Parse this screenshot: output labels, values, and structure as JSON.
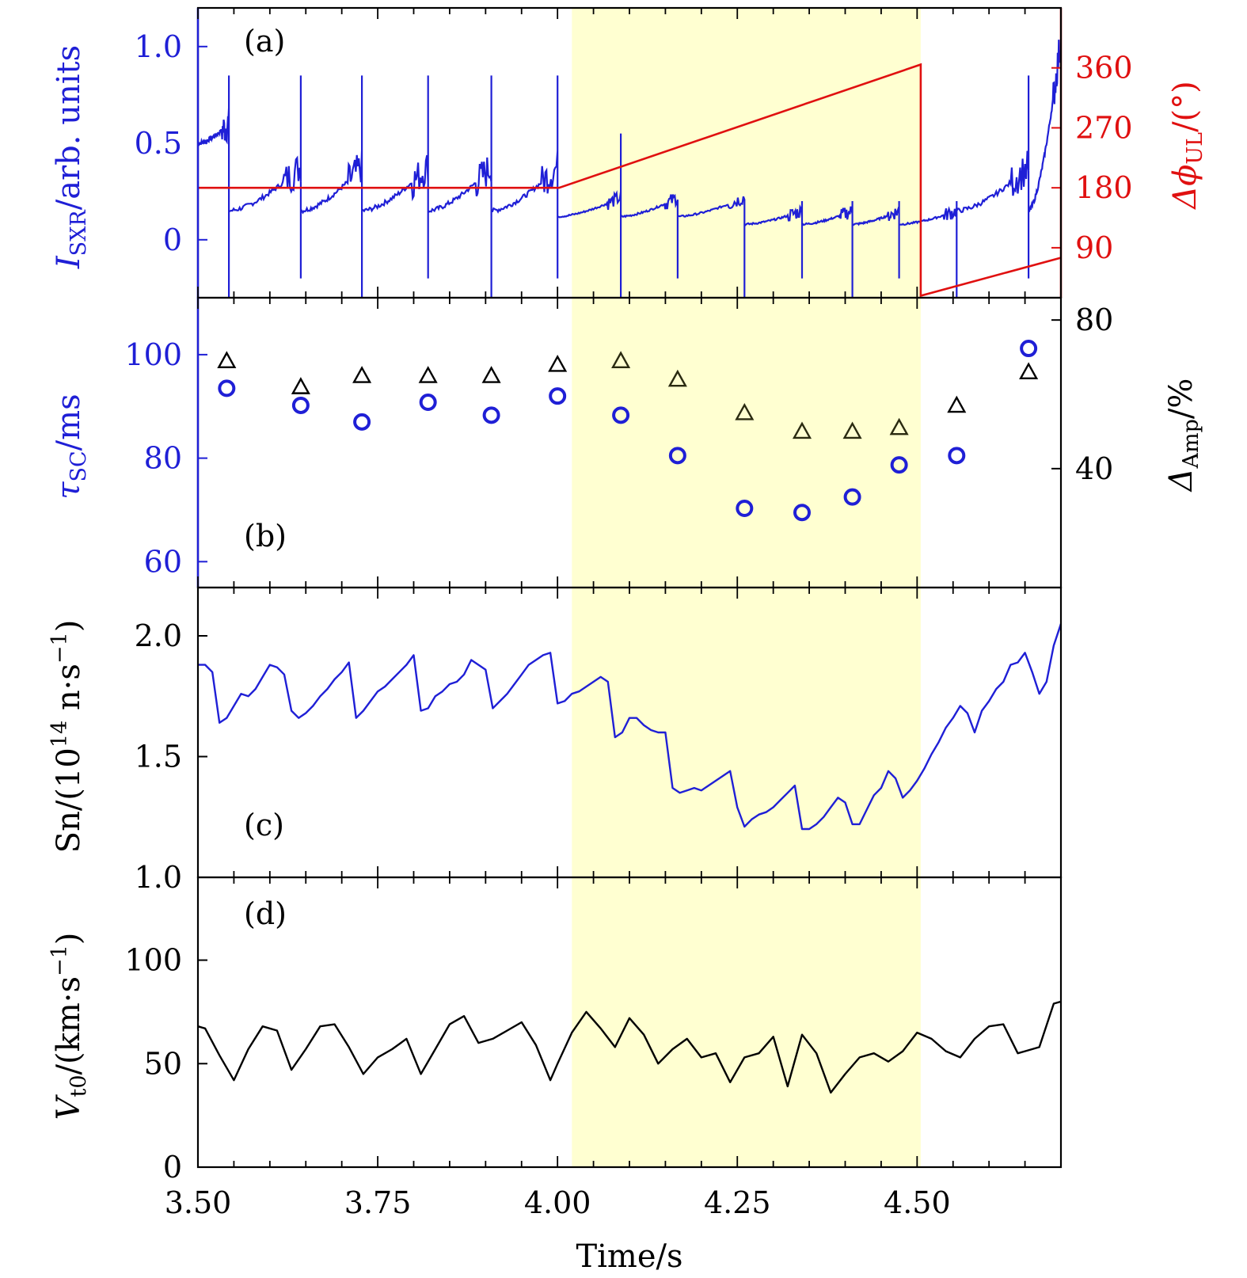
{
  "colors": {
    "blue": "#1f1fd6",
    "red": "#e01010",
    "black": "#000000",
    "olive": "#2a2a10",
    "shade": "#ffffd1"
  },
  "shaded_region": {
    "x0": 4.02,
    "x1": 4.505
  },
  "xaxis": {
    "title": "Time/s",
    "ticks": [
      "3.50",
      "3.75",
      "4.00",
      "4.25",
      "4.50"
    ]
  },
  "chart_data": [
    {
      "panel": "a",
      "label": "(a)",
      "type": "line",
      "xlim": [
        3.5,
        4.7
      ],
      "left_axis": {
        "title_main": "I",
        "title_sub": "SXR",
        "title_rest": "/arb. units",
        "ylim": [
          -0.3,
          1.2
        ],
        "ticks": [
          {
            "v": 0,
            "t": "0"
          },
          {
            "v": 0.5,
            "t": "0.5"
          },
          {
            "v": 1.0,
            "t": "1.0"
          }
        ]
      },
      "right_axis": {
        "title_main": "Δϕ",
        "title_sub": "UL",
        "title_rest": "/(°)",
        "ylim": [
          15,
          450
        ],
        "ticks": [
          {
            "v": 90,
            "t": "90"
          },
          {
            "v": 180,
            "t": "180"
          },
          {
            "v": 270,
            "t": "270"
          },
          {
            "v": 360,
            "t": "360"
          }
        ]
      },
      "sawtooth_crashes": [
        3.543,
        3.643,
        3.728,
        3.82,
        3.908,
        4.0,
        4.088,
        4.167,
        4.26,
        4.34,
        4.41,
        4.475,
        4.555,
        4.655
      ],
      "phase_series": {
        "name": "ΔϕUL",
        "x": [
          3.5,
          4.002,
          4.505,
          4.505,
          4.7
        ],
        "y": [
          180,
          180,
          365,
          18,
          75
        ]
      }
    },
    {
      "panel": "b",
      "label": "(b)",
      "type": "scatter",
      "xlim": [
        3.5,
        4.7
      ],
      "left_axis": {
        "title_main": "τ",
        "title_sub": "SC",
        "title_rest": "/ms",
        "ylim": [
          55,
          111
        ],
        "ticks": [
          {
            "v": 60,
            "t": "60"
          },
          {
            "v": 80,
            "t": "80"
          },
          {
            "v": 100,
            "t": "100"
          }
        ]
      },
      "right_axis": {
        "title_main": "Δ",
        "title_sub": "Amp",
        "title_rest": "/%",
        "ylim": [
          8,
          86
        ],
        "ticks": [
          {
            "v": 40,
            "t": "40"
          },
          {
            "v": 80,
            "t": "80"
          }
        ]
      },
      "series": [
        {
          "name": "τSC",
          "marker": "circle",
          "x": [
            3.54,
            3.643,
            3.728,
            3.82,
            3.908,
            4.0,
            4.088,
            4.167,
            4.26,
            4.34,
            4.41,
            4.475,
            4.555,
            4.655
          ],
          "y": [
            93.5,
            90.2,
            87.0,
            90.8,
            88.3,
            92.0,
            88.3,
            80.5,
            70.3,
            69.5,
            72.5,
            78.7,
            80.5,
            101.2
          ]
        },
        {
          "name": "ΔAmp",
          "marker": "triangle",
          "x": [
            3.54,
            3.643,
            3.728,
            3.82,
            3.908,
            4.0,
            4.088,
            4.167,
            4.26,
            4.34,
            4.41,
            4.475,
            4.555,
            4.655
          ],
          "y": [
            69,
            62,
            65,
            65,
            65,
            68,
            69,
            64,
            55,
            50,
            50,
            51,
            57,
            66
          ]
        }
      ]
    },
    {
      "panel": "c",
      "label": "(c)",
      "type": "line",
      "xlim": [
        3.5,
        4.7
      ],
      "left_axis": {
        "title_main": "Sn/(10",
        "title_sup": "14",
        "title_rest": " n·s",
        "title_sup2": "−1",
        "title_end": ")",
        "ylim": [
          1.0,
          2.2
        ],
        "ticks": [
          {
            "v": 1.0,
            "t": "1.0"
          },
          {
            "v": 1.5,
            "t": "1.5"
          },
          {
            "v": 2.0,
            "t": "2.0"
          }
        ]
      },
      "series": [
        {
          "name": "Sn",
          "x": [
            3.5,
            3.51,
            3.52,
            3.53,
            3.54,
            3.55,
            3.56,
            3.57,
            3.58,
            3.59,
            3.6,
            3.61,
            3.62,
            3.63,
            3.64,
            3.65,
            3.66,
            3.67,
            3.68,
            3.69,
            3.7,
            3.71,
            3.72,
            3.73,
            3.74,
            3.75,
            3.76,
            3.77,
            3.78,
            3.79,
            3.8,
            3.81,
            3.82,
            3.83,
            3.84,
            3.85,
            3.86,
            3.87,
            3.88,
            3.89,
            3.9,
            3.91,
            3.92,
            3.93,
            3.94,
            3.95,
            3.96,
            3.97,
            3.98,
            3.99,
            4.0,
            4.01,
            4.02,
            4.03,
            4.04,
            4.05,
            4.06,
            4.07,
            4.08,
            4.09,
            4.1,
            4.11,
            4.12,
            4.13,
            4.14,
            4.15,
            4.16,
            4.17,
            4.18,
            4.19,
            4.2,
            4.21,
            4.22,
            4.23,
            4.24,
            4.25,
            4.26,
            4.27,
            4.28,
            4.29,
            4.3,
            4.31,
            4.32,
            4.33,
            4.34,
            4.35,
            4.36,
            4.37,
            4.38,
            4.39,
            4.4,
            4.41,
            4.42,
            4.43,
            4.44,
            4.45,
            4.46,
            4.47,
            4.48,
            4.49,
            4.5,
            4.51,
            4.52,
            4.53,
            4.54,
            4.55,
            4.56,
            4.57,
            4.58,
            4.59,
            4.6,
            4.61,
            4.62,
            4.63,
            4.64,
            4.65,
            4.66,
            4.67,
            4.68,
            4.69,
            4.7
          ],
          "y": [
            1.88,
            1.88,
            1.85,
            1.64,
            1.66,
            1.71,
            1.76,
            1.75,
            1.78,
            1.83,
            1.88,
            1.87,
            1.84,
            1.69,
            1.66,
            1.68,
            1.71,
            1.75,
            1.78,
            1.82,
            1.85,
            1.89,
            1.66,
            1.69,
            1.73,
            1.77,
            1.79,
            1.82,
            1.85,
            1.88,
            1.92,
            1.69,
            1.7,
            1.75,
            1.77,
            1.8,
            1.81,
            1.84,
            1.9,
            1.88,
            1.86,
            1.7,
            1.73,
            1.76,
            1.8,
            1.84,
            1.88,
            1.9,
            1.92,
            1.93,
            1.72,
            1.73,
            1.76,
            1.77,
            1.79,
            1.81,
            1.83,
            1.81,
            1.58,
            1.6,
            1.66,
            1.66,
            1.63,
            1.61,
            1.6,
            1.6,
            1.37,
            1.35,
            1.36,
            1.37,
            1.36,
            1.38,
            1.4,
            1.42,
            1.44,
            1.29,
            1.21,
            1.24,
            1.26,
            1.27,
            1.29,
            1.32,
            1.35,
            1.38,
            1.2,
            1.2,
            1.22,
            1.25,
            1.29,
            1.33,
            1.31,
            1.22,
            1.22,
            1.28,
            1.34,
            1.37,
            1.44,
            1.41,
            1.33,
            1.36,
            1.4,
            1.45,
            1.51,
            1.56,
            1.62,
            1.66,
            1.71,
            1.68,
            1.6,
            1.69,
            1.73,
            1.78,
            1.81,
            1.88,
            1.89,
            1.93,
            1.85,
            1.76,
            1.81,
            1.96,
            2.05
          ]
        }
      ]
    },
    {
      "panel": "d",
      "label": "(d)",
      "type": "line",
      "xlim": [
        3.5,
        4.7
      ],
      "left_axis": {
        "title_main": "V",
        "title_sub": "t0",
        "title_rest": "/(km·s",
        "title_sup2": "−1",
        "title_end": ")",
        "ylim": [
          0,
          140
        ],
        "ticks": [
          {
            "v": 0,
            "t": "0"
          },
          {
            "v": 50,
            "t": "50"
          },
          {
            "v": 100,
            "t": "100"
          }
        ]
      },
      "series": [
        {
          "name": "Vt0",
          "x": [
            3.5,
            3.51,
            3.53,
            3.55,
            3.57,
            3.59,
            3.61,
            3.63,
            3.65,
            3.67,
            3.69,
            3.71,
            3.73,
            3.75,
            3.77,
            3.79,
            3.81,
            3.83,
            3.85,
            3.87,
            3.89,
            3.91,
            3.93,
            3.95,
            3.97,
            3.99,
            4.0,
            4.02,
            4.04,
            4.06,
            4.08,
            4.1,
            4.12,
            4.14,
            4.16,
            4.18,
            4.2,
            4.22,
            4.24,
            4.26,
            4.28,
            4.3,
            4.32,
            4.34,
            4.36,
            4.38,
            4.4,
            4.42,
            4.44,
            4.46,
            4.48,
            4.5,
            4.52,
            4.54,
            4.56,
            4.58,
            4.6,
            4.62,
            4.64,
            4.65,
            4.67,
            4.69,
            4.7
          ],
          "y": [
            68,
            67,
            54,
            42,
            57,
            68,
            66,
            47,
            57,
            68,
            69,
            58,
            45,
            53,
            57,
            62,
            45,
            57,
            69,
            73,
            60,
            62,
            66,
            70,
            59,
            42,
            50,
            65,
            75,
            67,
            58,
            72,
            64,
            50,
            57,
            62,
            53,
            55,
            41,
            53,
            55,
            63,
            39,
            64,
            55,
            36,
            45,
            53,
            55,
            51,
            56,
            65,
            62,
            56,
            53,
            62,
            68,
            69,
            55,
            56,
            58,
            79,
            80
          ]
        }
      ]
    }
  ]
}
